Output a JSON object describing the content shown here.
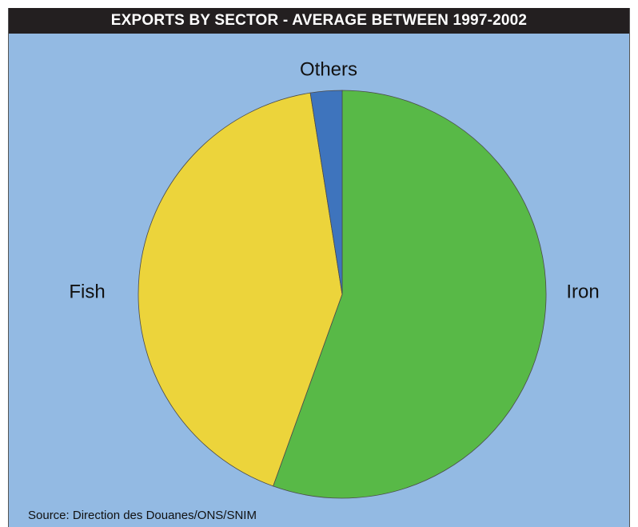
{
  "chart_data": {
    "type": "pie",
    "title": "EXPORTS BY SECTOR - AVERAGE BETWEEN 1997-2002",
    "slices": [
      {
        "label": "Iron",
        "value": 55.5,
        "color": "#58b947"
      },
      {
        "label": "Fish",
        "value": 42.0,
        "color": "#ecd43b"
      },
      {
        "label": "Others",
        "value": 2.5,
        "color": "#3e74bd"
      }
    ],
    "background": "#93bae3",
    "title_background": "#231f20",
    "source": "Source: Direction des Douanes/ONS/SNIM"
  }
}
